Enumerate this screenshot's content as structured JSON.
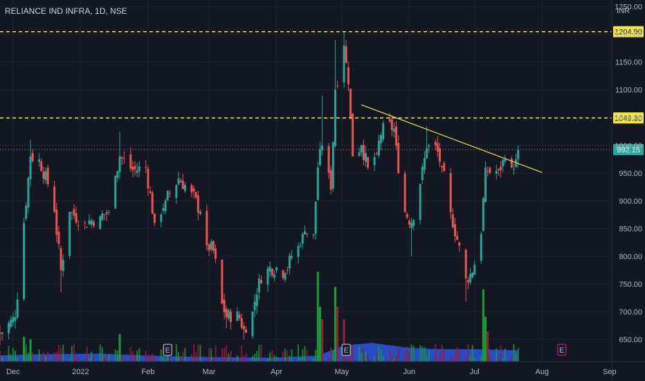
{
  "chart_data": {
    "type": "candlestick",
    "title": "RELIANCE IND INFRA, 1D, NSE",
    "currency": "INR",
    "ylim": [
      610,
      1262
    ],
    "y_ticks": [
      650,
      700,
      750,
      800,
      850,
      900,
      950,
      1000,
      1050,
      1100,
      1150,
      1200,
      1250
    ],
    "y_tick_labels": [
      "650.00",
      "700.00",
      "750.00",
      "800.00",
      "850.00",
      "900.00",
      "950.00",
      "1000.00",
      "1050.00",
      "1100.00",
      "1150.00",
      "1200.00",
      "1250.00"
    ],
    "x_ticks": [
      "Dec",
      "2022",
      "Feb",
      "Mar",
      "Apr",
      "May",
      "Jun",
      "Jul",
      "Aug",
      "Sep"
    ],
    "x_range": [
      "2021-11-25",
      "2022-09-02"
    ],
    "date_ticks": [
      "2021-12-01",
      "2022-01-01",
      "2022-02-01",
      "2022-03-01",
      "2022-04-01",
      "2022-05-01",
      "2022-06-01",
      "2022-07-01",
      "2022-08-01",
      "2022-09-01"
    ],
    "levels": [
      {
        "value": 1204.9,
        "label": "1204.90",
        "color": "#f5e542",
        "style": "dashed"
      },
      {
        "value": 1049.3,
        "label": "1049.30",
        "color": "#f5e542",
        "style": "dashed"
      },
      {
        "value": 992.15,
        "label": "992.15",
        "color": "#26a69a",
        "style": "dotted",
        "line_color": "#ad8b4a"
      }
    ],
    "trendline": {
      "start": [
        "2022-05-10",
        1073
      ],
      "end": [
        "2022-08-01",
        951
      ],
      "color": "#f5e542"
    },
    "colors": {
      "up": "#26a69a",
      "down": "#ef5350",
      "volume_area": "#2962ff",
      "volume_up": "#1a9c35",
      "volume_down": "#9c1c3b",
      "grid": "#1e222d",
      "background": "#131722",
      "earnings_past": "#b2b5be",
      "earnings_future": "#c2188b"
    },
    "earnings_markers": [
      {
        "date": "2022-02-10",
        "label": "E",
        "status": "past"
      },
      {
        "date": "2022-05-03",
        "label": "E",
        "status": "past"
      },
      {
        "date": "2022-08-10",
        "label": "E",
        "status": "upcoming"
      }
    ],
    "anchors": [
      {
        "date": "2021-11-25",
        "close": 660,
        "low": 640,
        "high": 675
      },
      {
        "date": "2021-12-02",
        "close": 690
      },
      {
        "date": "2021-12-06",
        "close": 860
      },
      {
        "date": "2021-12-09",
        "close": 980,
        "high": 1010
      },
      {
        "date": "2021-12-13",
        "close": 975
      },
      {
        "date": "2021-12-17",
        "close": 930
      },
      {
        "date": "2021-12-20",
        "close": 880
      },
      {
        "date": "2021-12-23",
        "close": 775,
        "low": 735
      },
      {
        "date": "2021-12-27",
        "close": 880
      },
      {
        "date": "2022-01-03",
        "close": 860
      },
      {
        "date": "2022-01-10",
        "close": 872
      },
      {
        "date": "2022-01-14",
        "close": 880
      },
      {
        "date": "2022-01-17",
        "close": 945
      },
      {
        "date": "2022-01-19",
        "close": 980,
        "high": 1025
      },
      {
        "date": "2022-01-25",
        "close": 955
      },
      {
        "date": "2022-01-31",
        "close": 960
      },
      {
        "date": "2022-02-04",
        "close": 860
      },
      {
        "date": "2022-02-09",
        "close": 900
      },
      {
        "date": "2022-02-15",
        "close": 940
      },
      {
        "date": "2022-02-21",
        "close": 915
      },
      {
        "date": "2022-02-25",
        "close": 880
      },
      {
        "date": "2022-02-28",
        "close": 820
      },
      {
        "date": "2022-03-03",
        "close": 810
      },
      {
        "date": "2022-03-07",
        "close": 715
      },
      {
        "date": "2022-03-09",
        "close": 690,
        "low": 670
      },
      {
        "date": "2022-03-14",
        "close": 700
      },
      {
        "date": "2022-03-17",
        "close": 668,
        "low": 650
      },
      {
        "date": "2022-03-21",
        "close": 700
      },
      {
        "date": "2022-03-24",
        "close": 760
      },
      {
        "date": "2022-03-28",
        "close": 778
      },
      {
        "date": "2022-04-01",
        "close": 780
      },
      {
        "date": "2022-04-05",
        "close": 770
      },
      {
        "date": "2022-04-08",
        "close": 800
      },
      {
        "date": "2022-04-12",
        "close": 820
      },
      {
        "date": "2022-04-14",
        "close": 845
      },
      {
        "date": "2022-04-18",
        "close": 840
      },
      {
        "date": "2022-04-20",
        "close": 960
      },
      {
        "date": "2022-04-22",
        "close": 1000,
        "high": 1090
      },
      {
        "date": "2022-04-26",
        "close": 920
      },
      {
        "date": "2022-04-28",
        "close": 1100,
        "high": 1190
      },
      {
        "date": "2022-05-02",
        "close": 1180,
        "high": 1205
      },
      {
        "date": "2022-05-04",
        "close": 1110
      },
      {
        "date": "2022-05-06",
        "close": 980
      },
      {
        "date": "2022-05-10",
        "close": 1000
      },
      {
        "date": "2022-05-13",
        "close": 960
      },
      {
        "date": "2022-05-17",
        "close": 985
      },
      {
        "date": "2022-05-20",
        "close": 1040
      },
      {
        "date": "2022-05-25",
        "close": 1030
      },
      {
        "date": "2022-05-27",
        "close": 950
      },
      {
        "date": "2022-05-30",
        "close": 880
      },
      {
        "date": "2022-06-02",
        "close": 860,
        "low": 800
      },
      {
        "date": "2022-06-06",
        "close": 930
      },
      {
        "date": "2022-06-09",
        "close": 995,
        "high": 1035
      },
      {
        "date": "2022-06-13",
        "close": 1000
      },
      {
        "date": "2022-06-16",
        "close": 960
      },
      {
        "date": "2022-06-20",
        "close": 880
      },
      {
        "date": "2022-06-23",
        "close": 830
      },
      {
        "date": "2022-06-27",
        "close": 760,
        "low": 718
      },
      {
        "date": "2022-06-30",
        "close": 770
      },
      {
        "date": "2022-07-04",
        "close": 840
      },
      {
        "date": "2022-07-06",
        "close": 960
      },
      {
        "date": "2022-07-08",
        "close": 950
      },
      {
        "date": "2022-07-12",
        "close": 955
      },
      {
        "date": "2022-07-15",
        "close": 975
      },
      {
        "date": "2022-07-18",
        "close": 960
      },
      {
        "date": "2022-07-20",
        "close": 975
      },
      {
        "date": "2022-07-21",
        "close": 992.15,
        "high": 1000,
        "low": 960
      }
    ],
    "volume_area": [
      {
        "date": "2021-11-25",
        "value": 0.25
      },
      {
        "date": "2021-12-15",
        "value": 0.3
      },
      {
        "date": "2022-01-10",
        "value": 0.32
      },
      {
        "date": "2022-02-01",
        "value": 0.24
      },
      {
        "date": "2022-03-01",
        "value": 0.18
      },
      {
        "date": "2022-04-01",
        "value": 0.16
      },
      {
        "date": "2022-04-20",
        "value": 0.24
      },
      {
        "date": "2022-05-02",
        "value": 0.65
      },
      {
        "date": "2022-05-15",
        "value": 0.75
      },
      {
        "date": "2022-06-01",
        "value": 0.55
      },
      {
        "date": "2022-06-15",
        "value": 0.5
      },
      {
        "date": "2022-07-01",
        "value": 0.5
      },
      {
        "date": "2022-07-21",
        "value": 0.45
      }
    ],
    "volume_spikes": [
      {
        "date": "2021-12-06",
        "value": 0.5,
        "dir": "up"
      },
      {
        "date": "2021-12-09",
        "value": 0.45,
        "dir": "up"
      },
      {
        "date": "2022-01-19",
        "value": 0.55,
        "dir": "up"
      },
      {
        "date": "2022-04-20",
        "value": 1.8,
        "dir": "up"
      },
      {
        "date": "2022-04-21",
        "value": 1.1,
        "dir": "up"
      },
      {
        "date": "2022-04-22",
        "value": 0.85,
        "dir": "down"
      },
      {
        "date": "2022-04-28",
        "value": 1.5,
        "dir": "up"
      },
      {
        "date": "2022-04-29",
        "value": 1.1,
        "dir": "down"
      },
      {
        "date": "2022-05-02",
        "value": 0.85,
        "dir": "down"
      },
      {
        "date": "2022-07-05",
        "value": 1.45,
        "dir": "up"
      },
      {
        "date": "2022-07-06",
        "value": 0.9,
        "dir": "up"
      },
      {
        "date": "2022-07-07",
        "value": 0.6,
        "dir": "down"
      }
    ],
    "last_price": "992.15"
  }
}
